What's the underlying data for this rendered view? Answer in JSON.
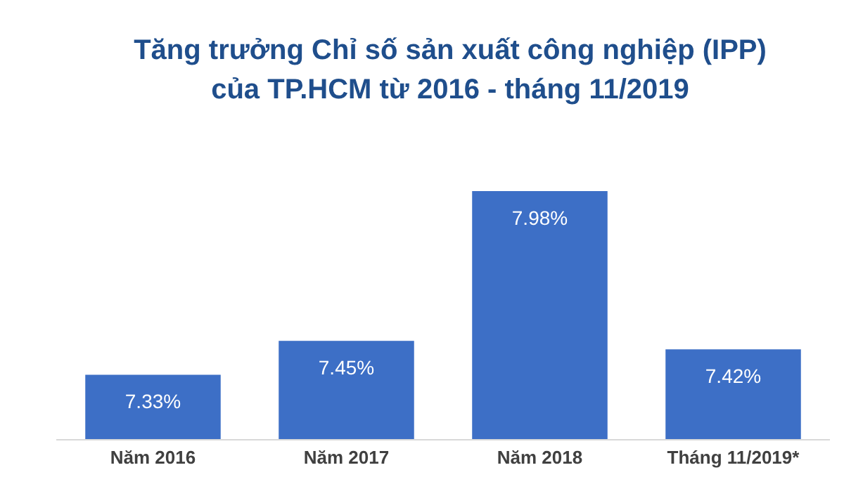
{
  "chart_data": {
    "type": "bar",
    "title": "Tăng trưởng Chỉ số sản xuất công nghiệp (IPP) của TP.HCM từ 2016 - tháng 11/2019",
    "categories": [
      "Năm 2016",
      "Năm 2017",
      "Năm 2018",
      "Tháng 11/2019*"
    ],
    "values": [
      7.33,
      7.45,
      7.98,
      7.42
    ],
    "value_labels": [
      "7.33%",
      "7.45%",
      "7.98%",
      "7.42%"
    ],
    "color": "#3d6fc6",
    "ylim": [
      7.1,
      7.98
    ],
    "tick_labels": "x"
  }
}
